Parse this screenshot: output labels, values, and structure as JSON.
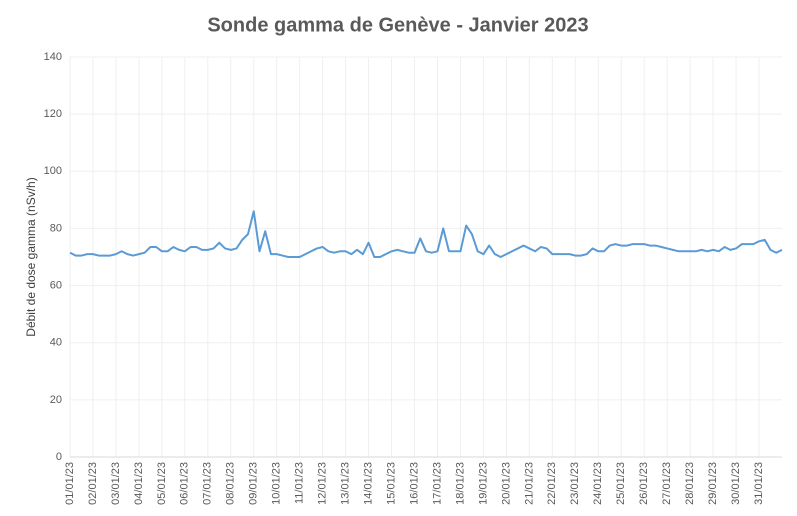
{
  "chart_data": {
    "type": "line",
    "title": "Sonde gamma de Genève - Janvier 2023",
    "y_label": "Débit de dose gamma (nSv/h)",
    "categories": [
      "01/01/23",
      null,
      null,
      null,
      "02/01/23",
      null,
      null,
      null,
      "03/01/23",
      null,
      null,
      null,
      "04/01/23",
      null,
      null,
      null,
      "05/01/23",
      null,
      null,
      null,
      "06/01/23",
      null,
      null,
      null,
      "07/01/23",
      null,
      null,
      null,
      "08/01/23",
      null,
      null,
      null,
      "09/01/23",
      null,
      null,
      null,
      "10/01/23",
      null,
      null,
      null,
      "11/01/23",
      null,
      null,
      null,
      "12/01/23",
      null,
      null,
      null,
      "13/01/23",
      null,
      null,
      null,
      "14/01/23",
      null,
      null,
      null,
      "15/01/23",
      null,
      null,
      null,
      "16/01/23",
      null,
      null,
      null,
      "17/01/23",
      null,
      null,
      null,
      "18/01/23",
      null,
      null,
      null,
      "19/01/23",
      null,
      null,
      null,
      "20/01/23",
      null,
      null,
      null,
      "21/01/23",
      null,
      null,
      null,
      "22/01/23",
      null,
      null,
      null,
      "23/01/23",
      null,
      null,
      null,
      "24/01/23",
      null,
      null,
      null,
      "25/01/23",
      null,
      null,
      null,
      "26/01/23",
      null,
      null,
      null,
      "27/01/23",
      null,
      null,
      null,
      "28/01/23",
      null,
      null,
      null,
      "29/01/23",
      null,
      null,
      null,
      "30/01/23",
      null,
      null,
      null,
      "31/01/23",
      null,
      null,
      null,
      null
    ],
    "series": [
      {
        "name": "Débit de dose gamma",
        "color": "#5b9bd5",
        "values": [
          71.5,
          70.5,
          70.5,
          71,
          71,
          70.5,
          70.5,
          70.5,
          71,
          72,
          71,
          70.5,
          71,
          71.5,
          73.5,
          73.5,
          72,
          72,
          73.5,
          72.5,
          72,
          73.5,
          73.5,
          72.5,
          72.5,
          73,
          75,
          73,
          72.5,
          73,
          76,
          78,
          86,
          72,
          79,
          71,
          71,
          70.5,
          70,
          70,
          70,
          71,
          72,
          73,
          73.5,
          72,
          71.5,
          72,
          72,
          71,
          72.5,
          71,
          75,
          70,
          70,
          71,
          72,
          72.5,
          72,
          71.5,
          71.5,
          76.5,
          72,
          71.5,
          72,
          80,
          72,
          72,
          72,
          81,
          78,
          72,
          71,
          74,
          71,
          70,
          71,
          72,
          73,
          74,
          73,
          72,
          73.5,
          73,
          71,
          71,
          71,
          71,
          70.5,
          70.5,
          71,
          73,
          72,
          72,
          74,
          74.5,
          74,
          74,
          74.5,
          74.5,
          74.5,
          74,
          74,
          73.5,
          73,
          72.5,
          72,
          72,
          72,
          72,
          72.5,
          72,
          72.5,
          72,
          73.5,
          72.5,
          73,
          74.5,
          74.5,
          74.5,
          75.5,
          76,
          72.5,
          71.5,
          72.5
        ]
      }
    ],
    "ylim": [
      0,
      140
    ],
    "yticks": [
      0,
      20,
      40,
      60,
      80,
      100,
      120,
      140
    ],
    "grid": true
  }
}
